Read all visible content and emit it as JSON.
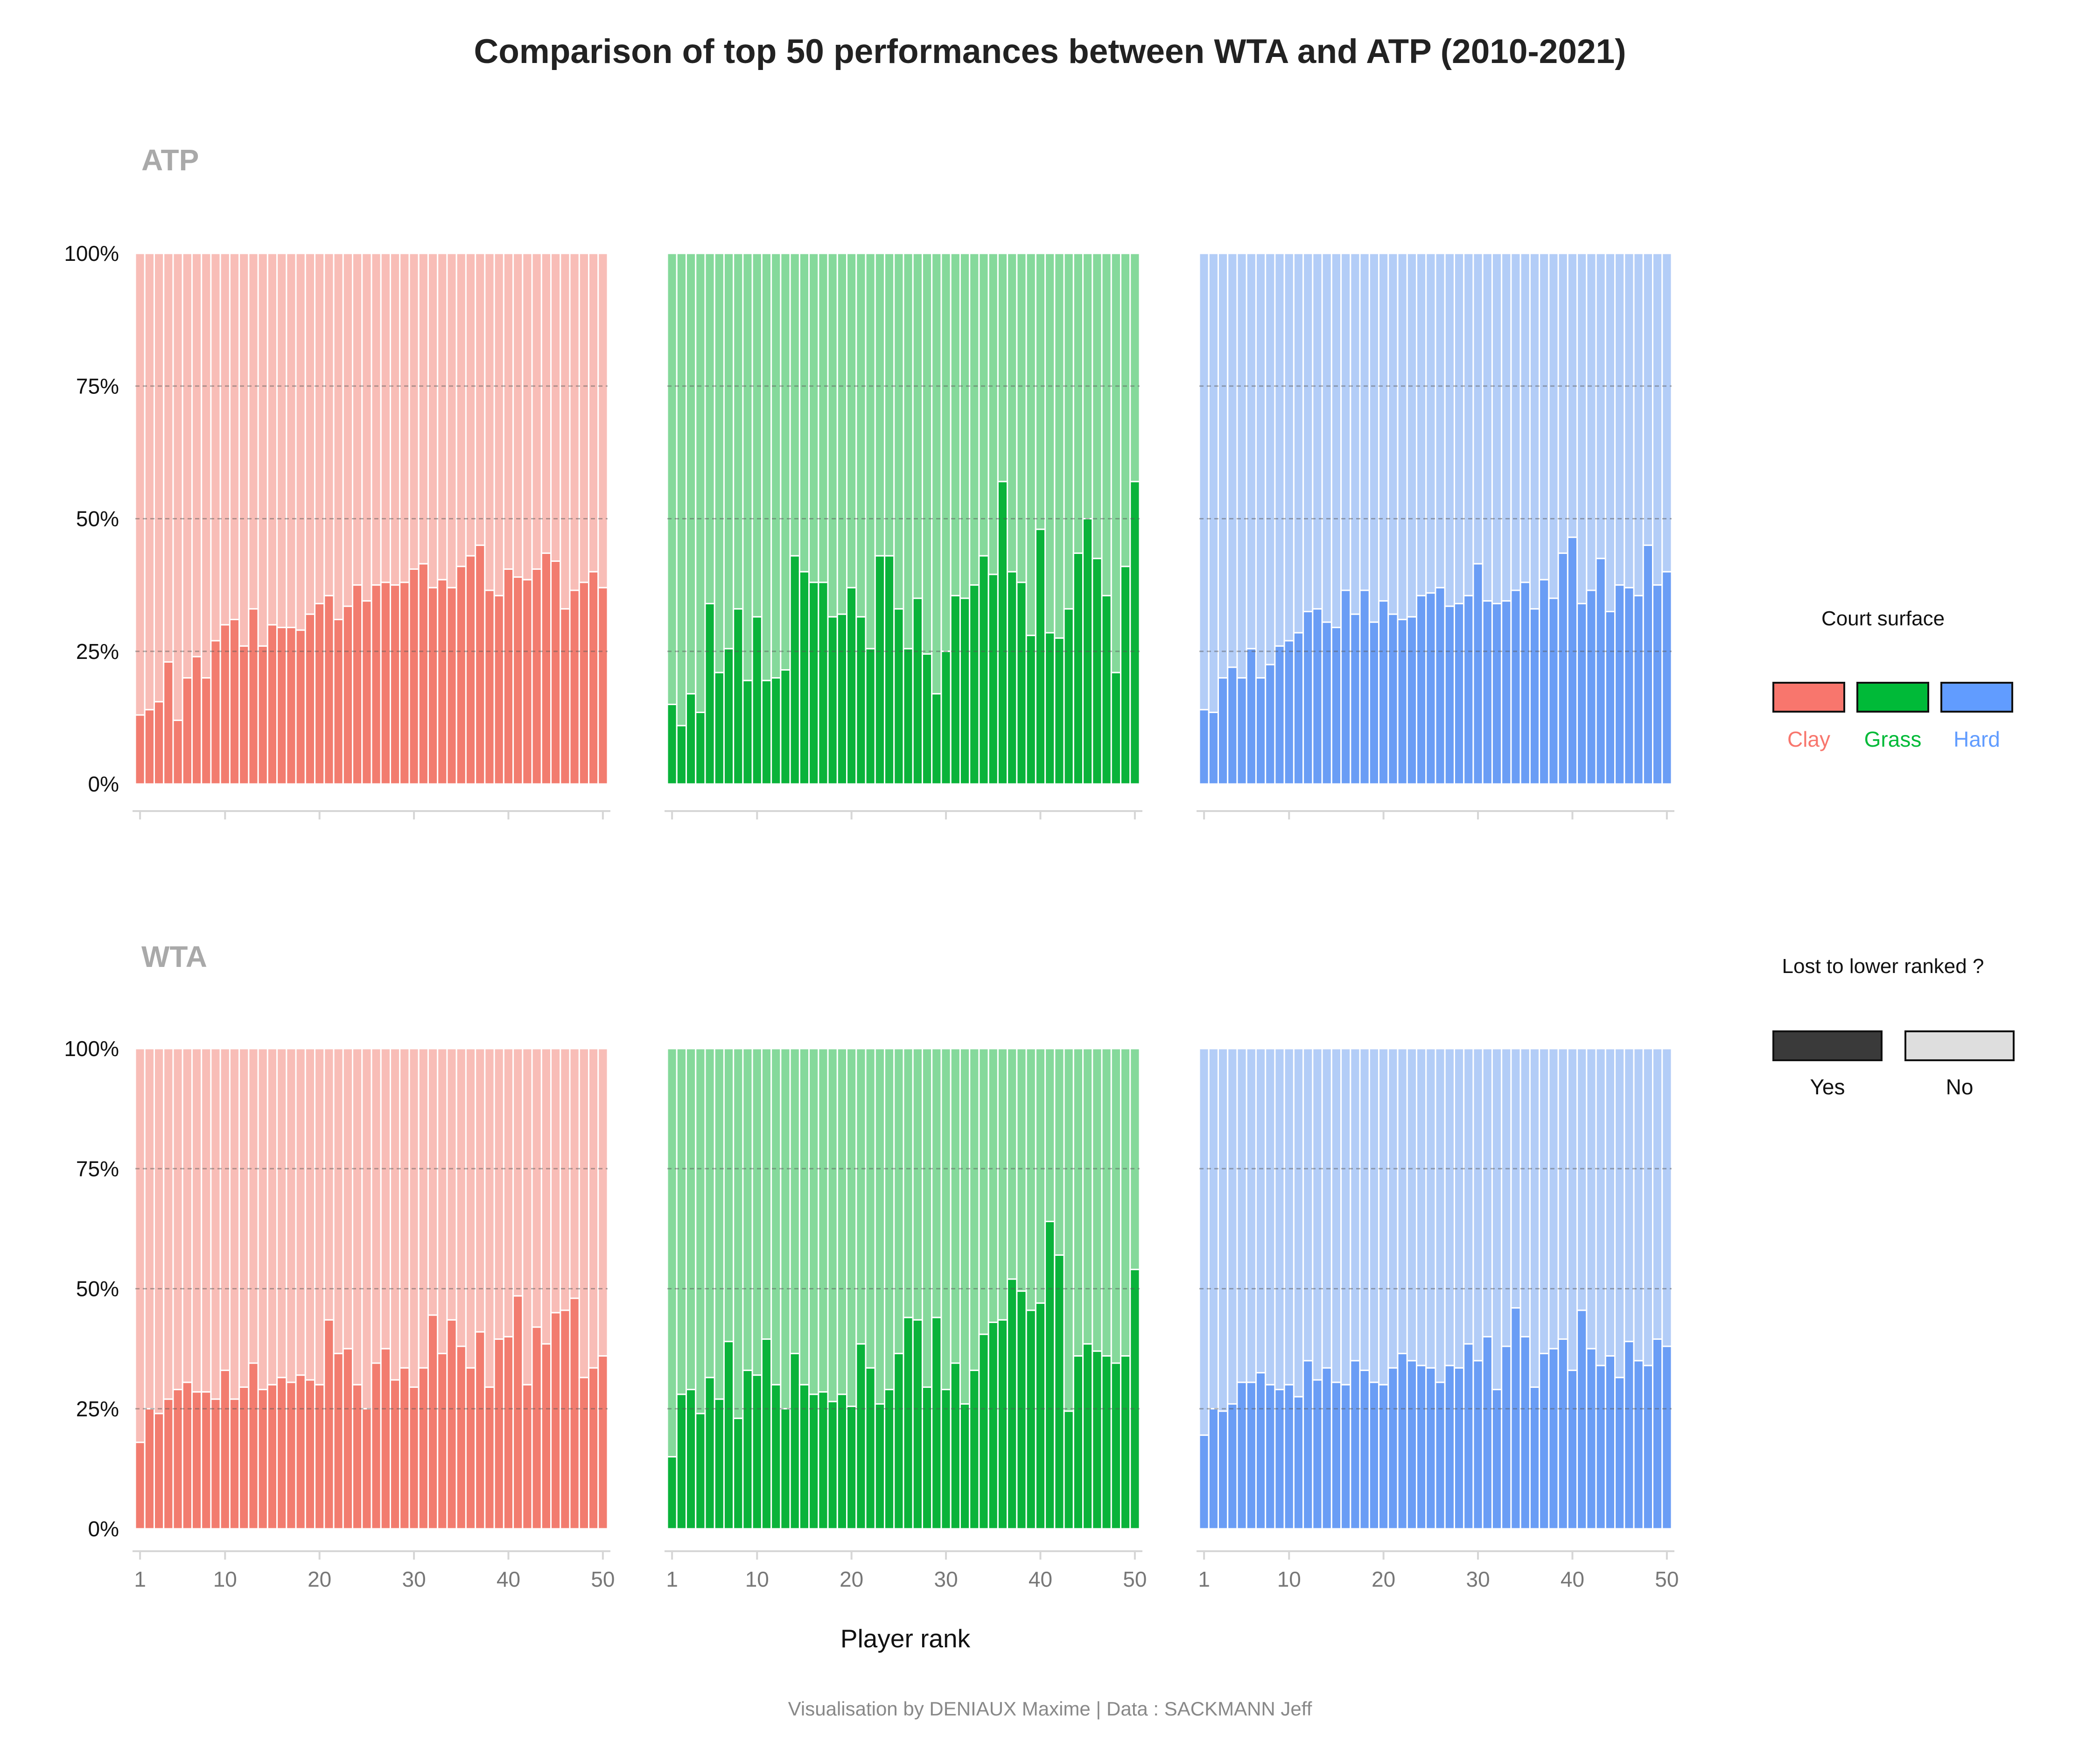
{
  "title": "Comparison of top 50 performances between WTA and ATP (2010-2021)",
  "caption": "Visualisation by DENIAUX Maxime | Data : SACKMANN Jeff",
  "colors": {
    "Clay": {
      "dark": "#f27c6f",
      "light": "#f8bdb7",
      "label": "#f8766d"
    },
    "Grass": {
      "dark": "#0ab33a",
      "light": "#85d99b",
      "label": "#00ba38"
    },
    "Hard": {
      "dark": "#6a9df5",
      "light": "#b3cdf7",
      "label": "#619cff"
    },
    "yes_swatch": "#3a3a3a",
    "no_swatch": "#dedede"
  },
  "legend": {
    "surface_title": "Court surface",
    "surfaces": [
      "Clay",
      "Grass",
      "Hard"
    ],
    "lost_title": "Lost to lower ranked ?",
    "lost_items": [
      "Yes",
      "No"
    ]
  },
  "chart_data": {
    "type": "bar",
    "stacked": true,
    "percent": true,
    "xlabel": "Player rank",
    "ylabel": "",
    "ylim": [
      0,
      100
    ],
    "yticks": [
      "0%",
      "25%",
      "50%",
      "75%",
      "100%"
    ],
    "xticks": [
      1,
      10,
      20,
      30,
      40,
      50
    ],
    "x": [
      1,
      2,
      3,
      4,
      5,
      6,
      7,
      8,
      9,
      10,
      11,
      12,
      13,
      14,
      15,
      16,
      17,
      18,
      19,
      20,
      21,
      22,
      23,
      24,
      25,
      26,
      27,
      28,
      29,
      30,
      31,
      32,
      33,
      34,
      35,
      36,
      37,
      38,
      39,
      40,
      41,
      42,
      43,
      44,
      45,
      46,
      47,
      48,
      49,
      50
    ],
    "panels": [
      {
        "tour": "ATP",
        "surface": "Clay",
        "values": [
          13,
          14,
          15.5,
          23,
          12,
          20,
          24,
          20,
          27,
          30,
          31,
          26,
          33,
          26,
          30,
          29.5,
          29.5,
          29,
          32,
          34,
          35.5,
          31,
          33.5,
          37.5,
          34.5,
          37.5,
          38,
          37.5,
          38,
          40.5,
          41.5,
          37,
          38.5,
          37,
          41,
          43,
          45,
          36.5,
          35.5,
          40.5,
          39,
          38.5,
          40.5,
          43.5,
          42,
          33,
          36.5,
          38,
          40,
          37
        ]
      },
      {
        "tour": "ATP",
        "surface": "Grass",
        "values": [
          15,
          11,
          17,
          13.5,
          34,
          21,
          25.5,
          33,
          19.5,
          31.5,
          19.5,
          20,
          21.5,
          43,
          40,
          38,
          38,
          31.5,
          32,
          37,
          31.5,
          25.5,
          43,
          43,
          33,
          25.5,
          35,
          24.5,
          17,
          25,
          35.5,
          35,
          37.5,
          43,
          39.5,
          57,
          40,
          38,
          28,
          48,
          28.5,
          27.5,
          33,
          43.5,
          50,
          42.5,
          35.5,
          21,
          41,
          57
        ]
      },
      {
        "tour": "ATP",
        "surface": "Hard",
        "values": [
          14,
          13.5,
          20,
          22,
          20,
          25.5,
          20,
          22.5,
          26,
          27,
          28.5,
          32.5,
          33,
          30.5,
          29.5,
          36.5,
          32,
          36.5,
          30.5,
          34.5,
          32,
          31,
          31.5,
          35.5,
          36,
          37,
          33.5,
          34,
          35.5,
          41.5,
          34.5,
          34,
          34.5,
          36.5,
          38,
          33,
          38.5,
          35,
          43.5,
          46.5,
          34,
          36.5,
          42.5,
          32.5,
          37.5,
          37,
          35.5,
          45,
          37.5,
          40
        ]
      },
      {
        "tour": "WTA",
        "surface": "Clay",
        "values": [
          18,
          25,
          24,
          27,
          29,
          30.5,
          28.5,
          28.5,
          27,
          33,
          27,
          29.5,
          34.5,
          29,
          30,
          31.5,
          30.5,
          32,
          31,
          30,
          43.5,
          36.5,
          37.5,
          30,
          25,
          34.5,
          37.5,
          31,
          33.5,
          29.5,
          33.5,
          44.5,
          36.5,
          43.5,
          38,
          33.5,
          41,
          29.5,
          39.5,
          40,
          48.5,
          30,
          42,
          38.5,
          45,
          45.5,
          48,
          31.5,
          33.5,
          36
        ]
      },
      {
        "tour": "WTA",
        "surface": "Grass",
        "values": [
          15,
          28,
          29,
          24,
          31.5,
          27,
          39,
          23,
          33,
          32,
          39.5,
          30,
          25,
          36.5,
          30,
          28,
          28.5,
          26.5,
          28,
          25.5,
          38.5,
          33.5,
          26,
          29,
          36.5,
          44,
          43.5,
          29.5,
          44,
          29,
          34.5,
          26,
          33,
          40.5,
          43,
          43.5,
          52,
          49.5,
          45.5,
          47,
          64,
          57,
          24.5,
          36,
          38.5,
          37,
          36,
          34.5,
          36,
          54
        ]
      },
      {
        "tour": "WTA",
        "surface": "Hard",
        "values": [
          19.5,
          25,
          24.5,
          26,
          30.5,
          30.5,
          32.5,
          30,
          29,
          30,
          27.5,
          35,
          31,
          33.5,
          30.5,
          30,
          35,
          33,
          30.5,
          30,
          33.5,
          36.5,
          35,
          34,
          33.5,
          30.5,
          34,
          33.5,
          38.5,
          35,
          40,
          29,
          38,
          46,
          40,
          29.5,
          36.5,
          37.5,
          39.5,
          33,
          45.5,
          37.5,
          34,
          36,
          31.5,
          39,
          35,
          34,
          39.5,
          38
        ]
      }
    ]
  }
}
